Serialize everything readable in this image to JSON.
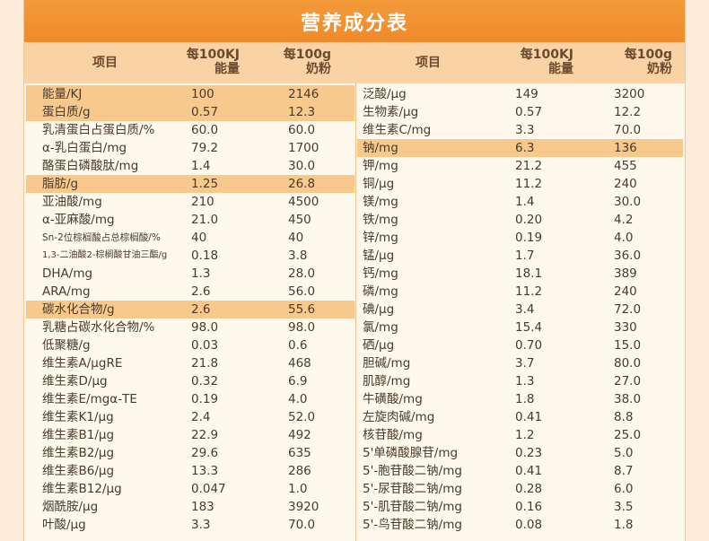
{
  "title": "营养成分表",
  "headers": {
    "item": "项目",
    "per_kj_line1": "每100KJ",
    "per_kj_line2": "能量",
    "per_g_line1": "每100g",
    "per_g_line2": "奶粉"
  },
  "left_rows": [
    {
      "name": "能量/KJ",
      "v1": "100",
      "v2": "2146",
      "hl": true
    },
    {
      "name": "蛋白质/g",
      "v1": "0.57",
      "v2": "12.3",
      "hl": true
    },
    {
      "name": "乳清蛋白占蛋白质/%",
      "v1": "60.0",
      "v2": "60.0"
    },
    {
      "name": "α-乳白蛋白/mg",
      "v1": "79.2",
      "v2": "1700"
    },
    {
      "name": "酪蛋白磷酸肽/mg",
      "v1": "1.4",
      "v2": "30.0"
    },
    {
      "name": "脂肪/g",
      "v1": "1.25",
      "v2": "26.8",
      "hl": true
    },
    {
      "name": "亚油酸/mg",
      "v1": "210",
      "v2": "4500"
    },
    {
      "name": "α-亚麻酸/mg",
      "v1": "21.0",
      "v2": "450"
    },
    {
      "name": "Sn-2位棕榈酸占总棕榈酸/%",
      "v1": "40",
      "v2": "40",
      "size": "small"
    },
    {
      "name": "1,3-二油酸2-棕榈酸甘油三酯/g",
      "v1": "0.18",
      "v2": "3.8",
      "size": "xs"
    },
    {
      "name": "DHA/mg",
      "v1": "1.3",
      "v2": "28.0"
    },
    {
      "name": "ARA/mg",
      "v1": "2.6",
      "v2": "56.0"
    },
    {
      "name": "碳水化合物/g",
      "v1": "2.6",
      "v2": "55.6",
      "hl": true
    },
    {
      "name": "乳糖占碳水化合物/%",
      "v1": "98.0",
      "v2": "98.0"
    },
    {
      "name": "低聚糖/g",
      "v1": "0.03",
      "v2": "0.6"
    },
    {
      "name": "维生素A/μgRE",
      "v1": "21.8",
      "v2": "468"
    },
    {
      "name": "维生素D/μg",
      "v1": "0.32",
      "v2": "6.9"
    },
    {
      "name": "维生素E/mgα-TE",
      "v1": "0.19",
      "v2": "4.0"
    },
    {
      "name": "维生素K1/μg",
      "v1": "2.4",
      "v2": "52.0"
    },
    {
      "name": "维生素B1/μg",
      "v1": "22.9",
      "v2": "492"
    },
    {
      "name": "维生素B2/μg",
      "v1": "29.6",
      "v2": "635"
    },
    {
      "name": "维生素B6/μg",
      "v1": "13.3",
      "v2": "286"
    },
    {
      "name": "维生素B12/μg",
      "v1": "0.047",
      "v2": "1.0"
    },
    {
      "name": "烟酰胺/μg",
      "v1": "183",
      "v2": "3920"
    },
    {
      "name": "叶酸/μg",
      "v1": "3.3",
      "v2": "70.0"
    }
  ],
  "right_rows": [
    {
      "name": "泛酸/μg",
      "v1": "149",
      "v2": "3200"
    },
    {
      "name": "生物素/μg",
      "v1": "0.57",
      "v2": "12.2"
    },
    {
      "name": "维生素C/mg",
      "v1": "3.3",
      "v2": "70.0"
    },
    {
      "name": "钠/mg",
      "v1": "6.3",
      "v2": "136",
      "hl": true
    },
    {
      "name": "钾/mg",
      "v1": "21.2",
      "v2": "455"
    },
    {
      "name": "铜/μg",
      "v1": "11.2",
      "v2": "240"
    },
    {
      "name": "镁/mg",
      "v1": "1.4",
      "v2": "30.0"
    },
    {
      "name": "铁/mg",
      "v1": "0.20",
      "v2": "4.2"
    },
    {
      "name": "锌/mg",
      "v1": "0.19",
      "v2": "4.0"
    },
    {
      "name": "锰/μg",
      "v1": "1.7",
      "v2": "36.0"
    },
    {
      "name": "钙/mg",
      "v1": "18.1",
      "v2": "389"
    },
    {
      "name": "磷/mg",
      "v1": "11.2",
      "v2": "240"
    },
    {
      "name": "碘/μg",
      "v1": "3.4",
      "v2": "72.0"
    },
    {
      "name": "氯/mg",
      "v1": "15.4",
      "v2": "330"
    },
    {
      "name": "硒/μg",
      "v1": "0.70",
      "v2": "15.0"
    },
    {
      "name": "胆碱/mg",
      "v1": "3.7",
      "v2": "80.0"
    },
    {
      "name": "肌醇/mg",
      "v1": "1.3",
      "v2": "27.0"
    },
    {
      "name": "牛磺酸/mg",
      "v1": "1.8",
      "v2": "38.0"
    },
    {
      "name": "左旋肉碱/mg",
      "v1": "0.41",
      "v2": "8.8"
    },
    {
      "name": "核苷酸/mg",
      "v1": "1.2",
      "v2": "25.0"
    },
    {
      "name": "5'单磷酸腺苷/mg",
      "v1": "0.23",
      "v2": "5.0"
    },
    {
      "name": "5'-胞苷酸二钠/mg",
      "v1": "0.41",
      "v2": "8.7"
    },
    {
      "name": "5'-尿苷酸二钠/mg",
      "v1": "0.28",
      "v2": "6.0"
    },
    {
      "name": "5'-肌苷酸二钠/mg",
      "v1": "0.16",
      "v2": "3.5"
    },
    {
      "name": "5'-鸟苷酸二钠/mg",
      "v1": "0.08",
      "v2": "1.8"
    }
  ]
}
